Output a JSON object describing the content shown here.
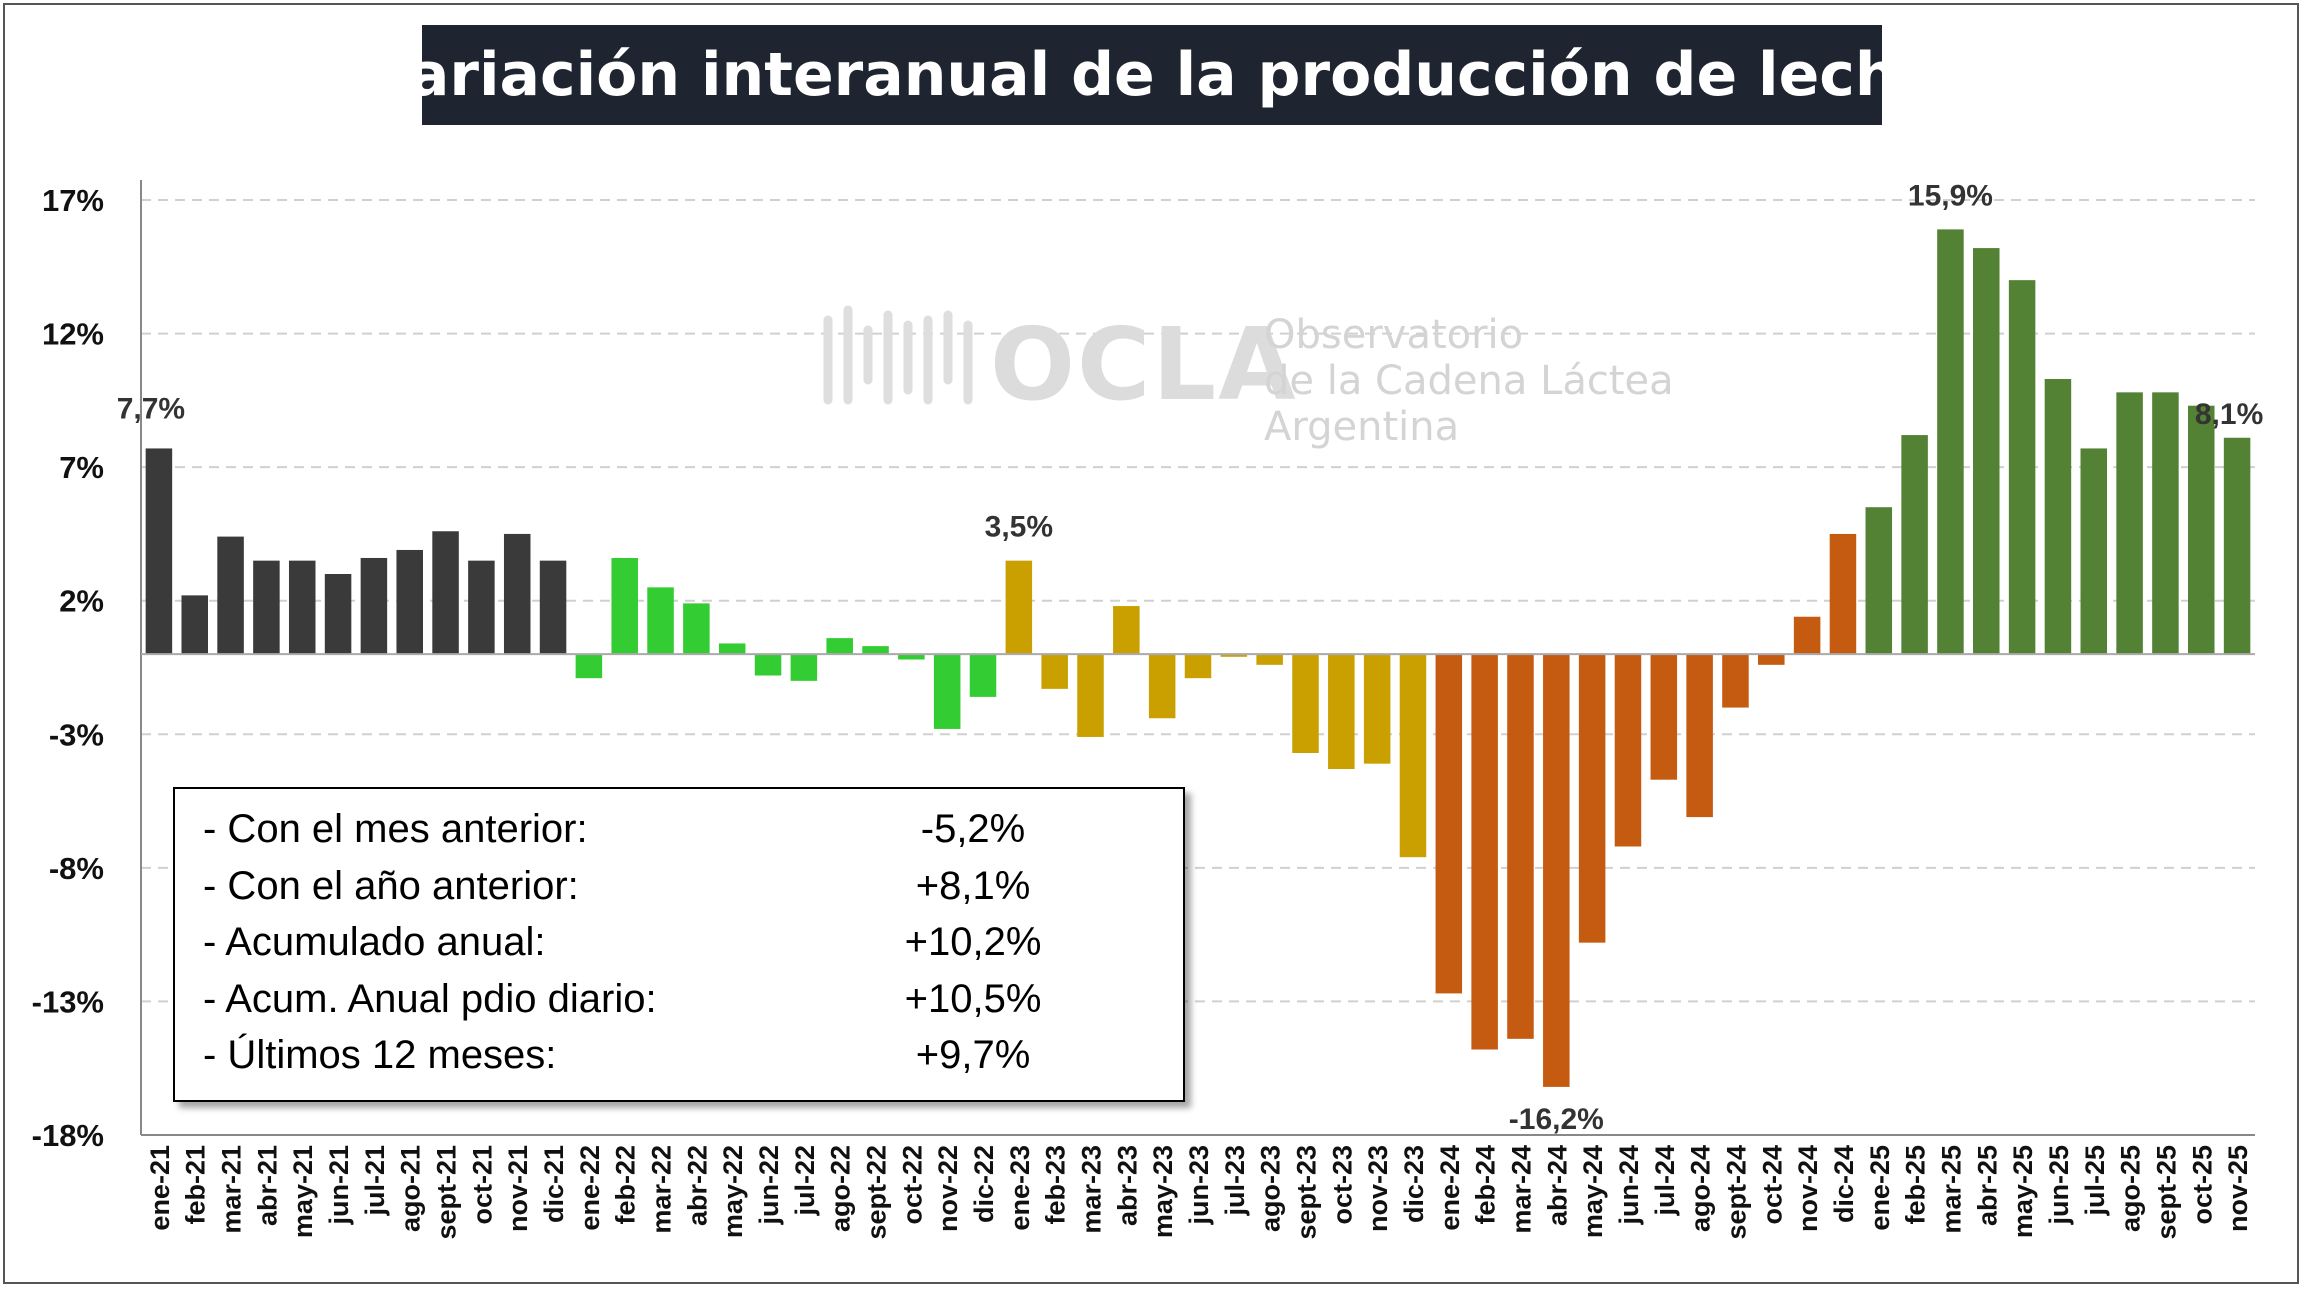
{
  "chart_data": {
    "type": "bar",
    "title": "Variación interanual de la producción de leche",
    "ylim": [
      -18,
      17
    ],
    "yticks": [
      17,
      12,
      7,
      2,
      -3,
      -8,
      -13,
      -18
    ],
    "ytick_labels": [
      "17%",
      "12%",
      "7%",
      "2%",
      "-3%",
      "-8%",
      "-13%",
      "-18%"
    ],
    "grid": true,
    "categories": [
      "ene-21",
      "feb-21",
      "mar-21",
      "abr-21",
      "may-21",
      "jun-21",
      "jul-21",
      "ago-21",
      "sept-21",
      "oct-21",
      "nov-21",
      "dic-21",
      "ene-22",
      "feb-22",
      "mar-22",
      "abr-22",
      "may-22",
      "jun-22",
      "jul-22",
      "ago-22",
      "sept-22",
      "oct-22",
      "nov-22",
      "dic-22",
      "ene-23",
      "feb-23",
      "mar-23",
      "abr-23",
      "may-23",
      "jun-23",
      "jul-23",
      "ago-23",
      "sept-23",
      "oct-23",
      "nov-23",
      "dic-23",
      "ene-24",
      "feb-24",
      "mar-24",
      "abr-24",
      "may-24",
      "jun-24",
      "jul-24",
      "ago-24",
      "sept-24",
      "oct-24",
      "nov-24",
      "dic-24",
      "ene-25",
      "feb-25",
      "mar-25",
      "abr-25",
      "may-25",
      "jun-25",
      "jul-25",
      "ago-25",
      "sept-25",
      "oct-25",
      "nov-25"
    ],
    "values": [
      7.7,
      2.2,
      4.4,
      3.5,
      3.5,
      3.0,
      3.6,
      3.9,
      4.6,
      3.5,
      4.5,
      3.5,
      -0.9,
      3.6,
      2.5,
      1.9,
      0.4,
      -0.8,
      -1.0,
      0.6,
      0.3,
      -0.2,
      -2.8,
      -1.6,
      3.5,
      -1.3,
      -3.1,
      1.8,
      -2.4,
      -0.9,
      -0.1,
      -0.4,
      -3.7,
      -4.3,
      -4.1,
      -7.6,
      -12.7,
      -14.8,
      -14.4,
      -16.2,
      -10.8,
      -7.2,
      -4.7,
      -6.1,
      -2.0,
      -0.4,
      1.4,
      4.5,
      5.5,
      8.2,
      15.9,
      15.2,
      14.0,
      10.3,
      7.7,
      9.8,
      9.8,
      9.3,
      8.1
    ],
    "bar_colors": [
      "#3a3a3a",
      "#3a3a3a",
      "#3a3a3a",
      "#3a3a3a",
      "#3a3a3a",
      "#3a3a3a",
      "#3a3a3a",
      "#3a3a3a",
      "#3a3a3a",
      "#3a3a3a",
      "#3a3a3a",
      "#3a3a3a",
      "#33cc33",
      "#33cc33",
      "#33cc33",
      "#33cc33",
      "#33cc33",
      "#33cc33",
      "#33cc33",
      "#33cc33",
      "#33cc33",
      "#33cc33",
      "#33cc33",
      "#33cc33",
      "#c9a000",
      "#c9a000",
      "#c9a000",
      "#c9a000",
      "#c9a000",
      "#c9a000",
      "#c9a000",
      "#c9a000",
      "#c9a000",
      "#c9a000",
      "#c9a000",
      "#c9a000",
      "#c55a11",
      "#c55a11",
      "#c55a11",
      "#c55a11",
      "#c55a11",
      "#c55a11",
      "#c55a11",
      "#c55a11",
      "#c55a11",
      "#c55a11",
      "#c55a11",
      "#c55a11",
      "#548235",
      "#548235",
      "#548235",
      "#548235",
      "#548235",
      "#548235",
      "#548235",
      "#548235",
      "#548235",
      "#548235",
      "#548235"
    ],
    "annotations": [
      {
        "index": 0,
        "label": "7,7%"
      },
      {
        "index": 24,
        "label": "3,5%"
      },
      {
        "index": 39,
        "label": "-16,2%"
      },
      {
        "index": 50,
        "label": "15,9%"
      },
      {
        "index": 58,
        "label": "8,1%"
      }
    ]
  },
  "watermark": {
    "logo": "OCLA",
    "line1": "Observatorio",
    "line2": "de la Cadena Láctea",
    "line3": "Argentina"
  },
  "summary": [
    {
      "label": "- Con el mes anterior:",
      "value": "-5,2%"
    },
    {
      "label": "- Con el año anterior:",
      "value": "+8,1%"
    },
    {
      "label": "- Acumulado anual:",
      "value": "+10,2%"
    },
    {
      "label": "- Acum. Anual pdio diario:",
      "value": "+10,5%"
    },
    {
      "label": "- Últimos 12 meses:",
      "value": "+9,7%"
    }
  ]
}
